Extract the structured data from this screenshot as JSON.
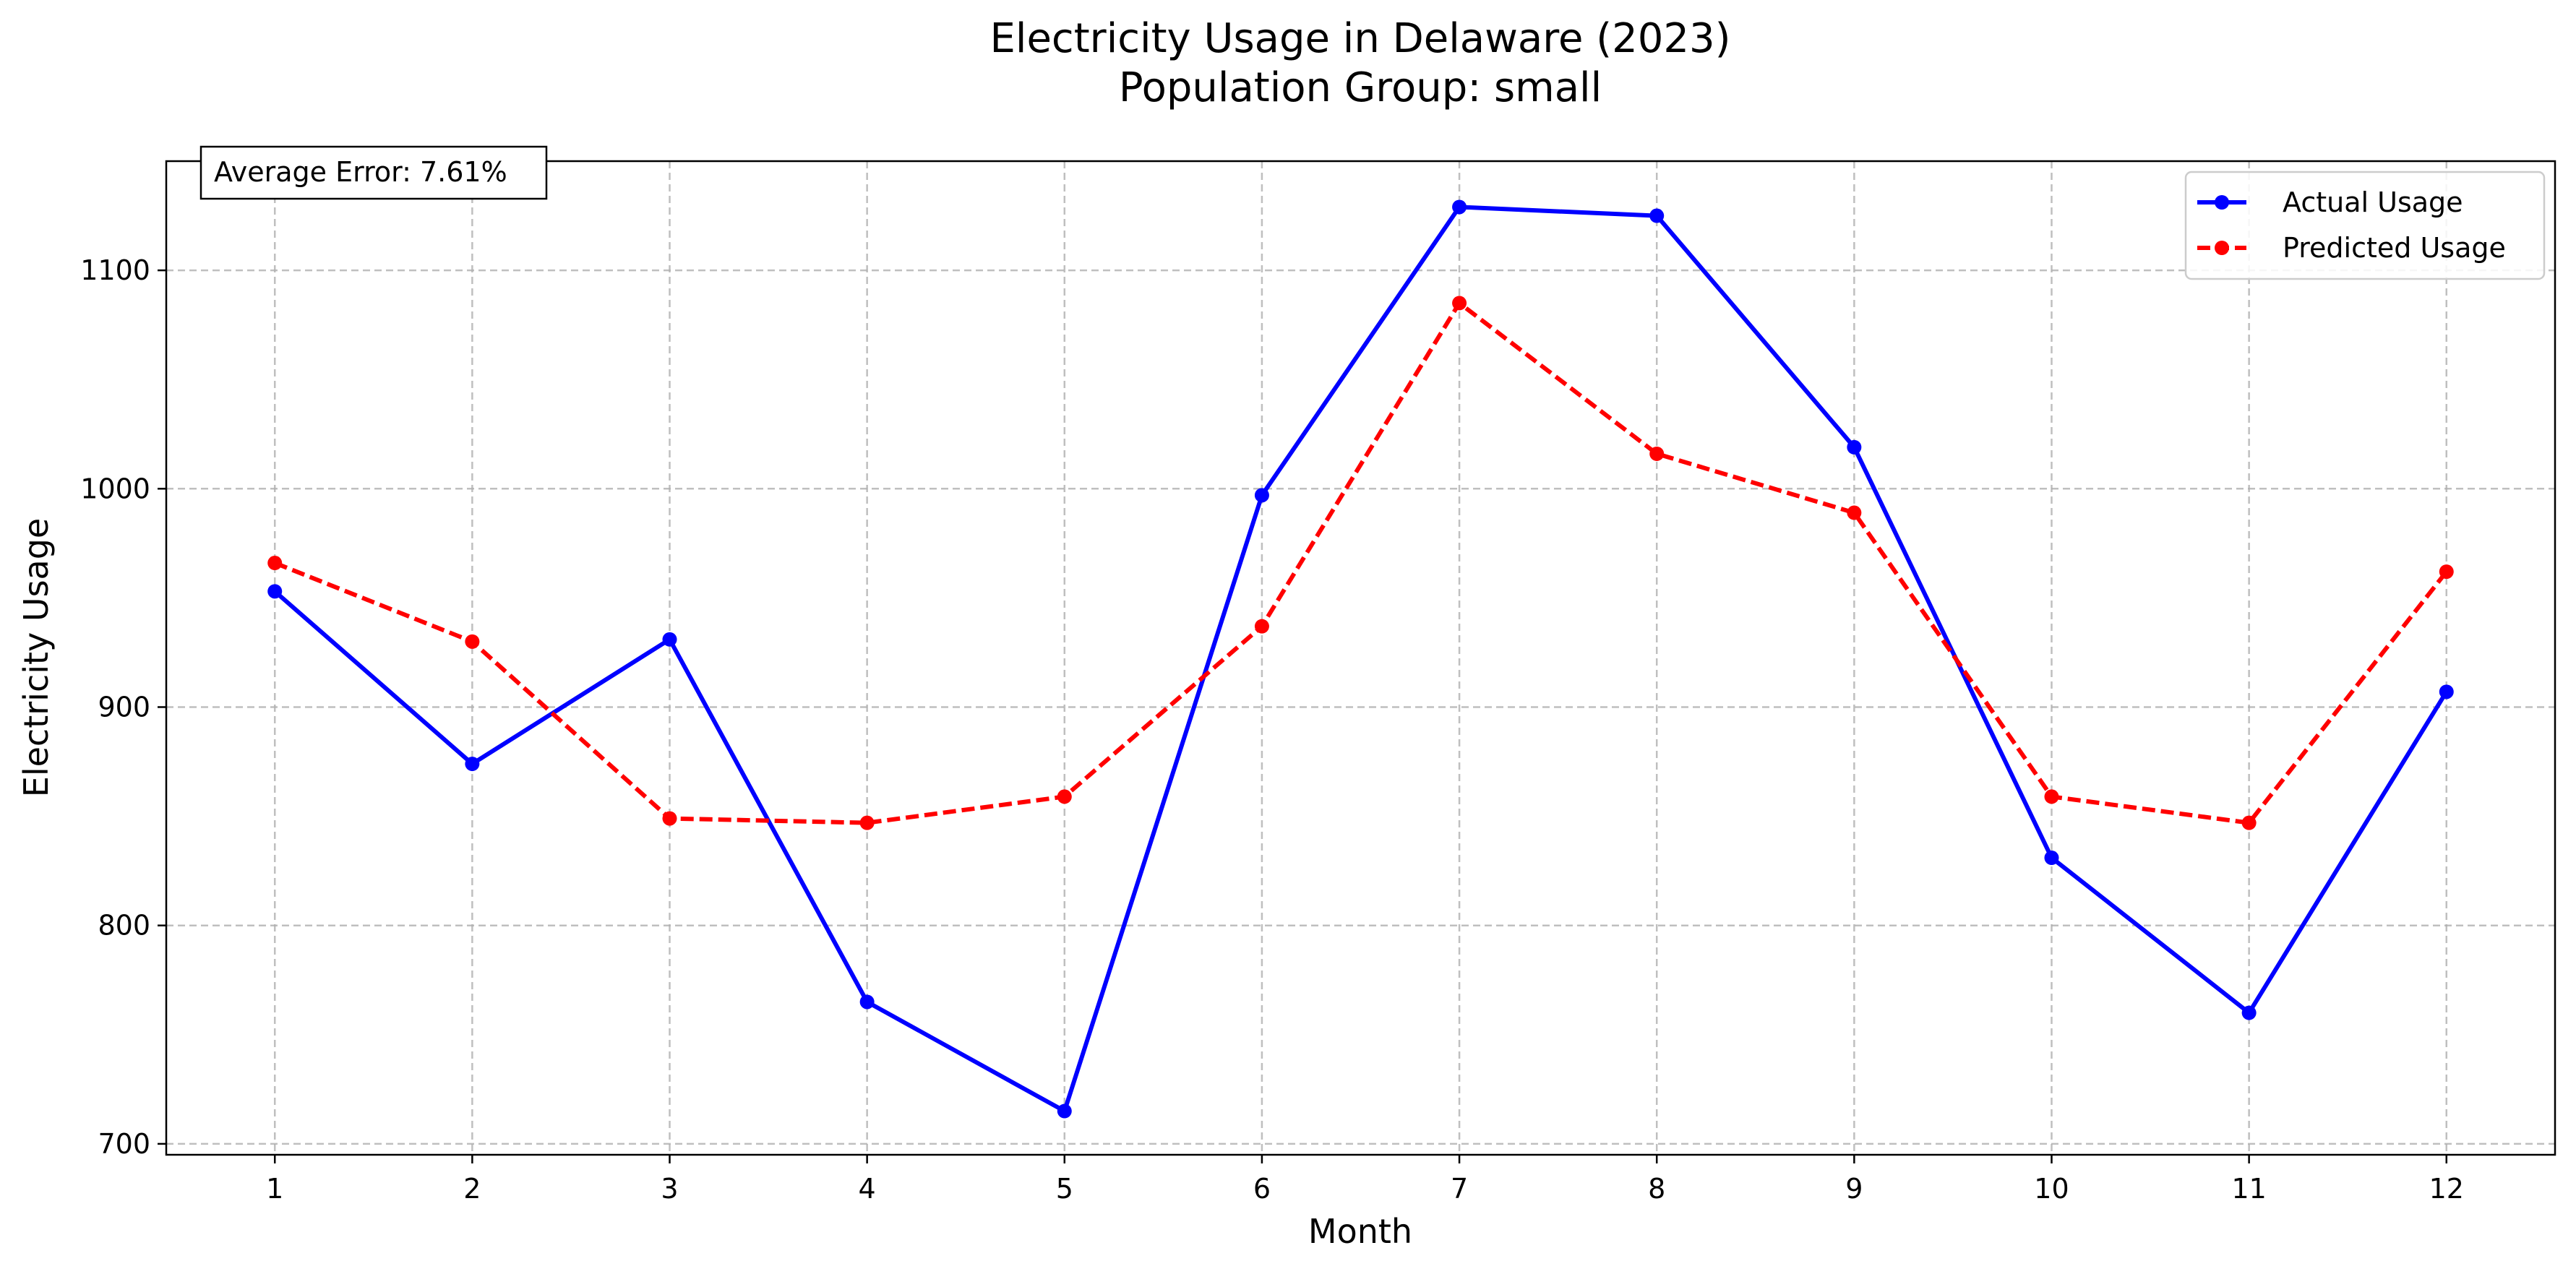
{
  "chart_data": {
    "type": "line",
    "title": "Electricity Usage in Delaware (2023)",
    "subtitle": "Population Group: small",
    "xlabel": "Month",
    "ylabel": "Electricity Usage",
    "x": [
      1,
      2,
      3,
      4,
      5,
      6,
      7,
      8,
      9,
      10,
      11,
      12
    ],
    "x_tick_labels": [
      "1",
      "2",
      "3",
      "4",
      "5",
      "6",
      "7",
      "8",
      "9",
      "10",
      "11",
      "12"
    ],
    "xlim": [
      0.45,
      12.55
    ],
    "ylim": [
      695,
      1150
    ],
    "y_ticks": [
      700,
      800,
      900,
      1000,
      1100
    ],
    "y_tick_labels": [
      "700",
      "800",
      "900",
      "1000",
      "1100"
    ],
    "grid": true,
    "legend_position": "top-right",
    "series": [
      {
        "name": "Actual Usage",
        "color": "#0000ff",
        "line_style": "solid",
        "marker": "circle",
        "values": [
          953,
          874,
          931,
          765,
          715,
          997,
          1129,
          1125,
          1019,
          831,
          760,
          907
        ]
      },
      {
        "name": "Predicted Usage",
        "color": "#ff0000",
        "line_style": "dashed",
        "marker": "circle",
        "values": [
          966,
          930,
          849,
          847,
          859,
          937,
          1085,
          1016,
          989,
          859,
          847,
          962
        ]
      }
    ],
    "annotation": "Average Error: 7.61%"
  }
}
